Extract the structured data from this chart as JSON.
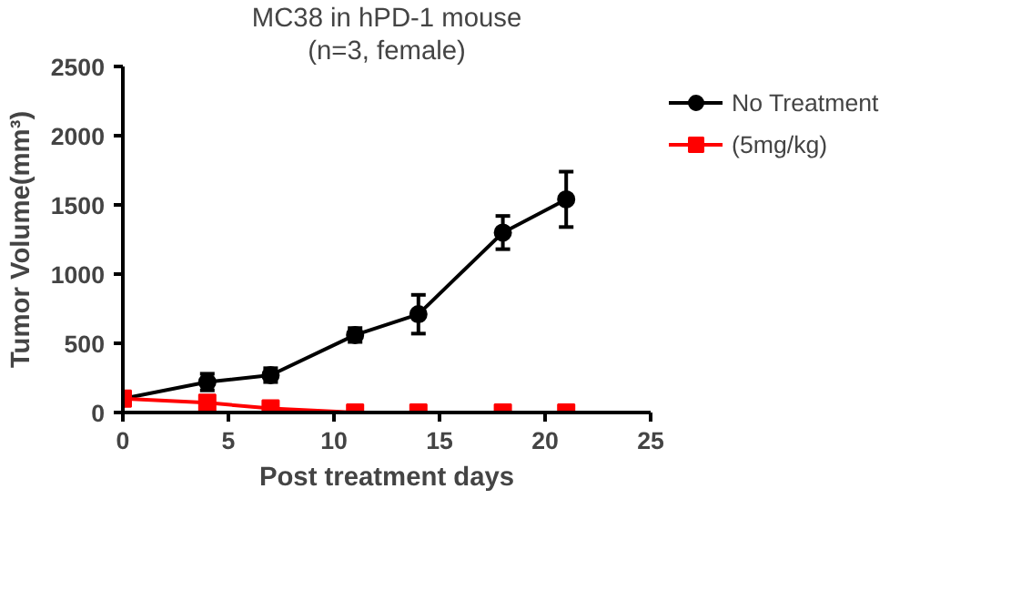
{
  "chart_data": {
    "type": "line",
    "title": "MC38 in hPD-1 mouse",
    "subtitle": "(n=3, female)",
    "xlabel": "Post treatment days",
    "ylabel": "Tumor Volume(mm³)",
    "x": [
      0,
      4,
      7,
      11,
      14,
      18,
      21
    ],
    "series": [
      {
        "name": "No Treatment",
        "color": "#000000",
        "marker": "circle",
        "values": [
          100,
          220,
          270,
          560,
          710,
          1300,
          1540
        ],
        "errors": [
          null,
          60,
          50,
          50,
          140,
          120,
          200
        ]
      },
      {
        "name": "(5mg/kg)",
        "color": "#ff0000",
        "marker": "square",
        "values": [
          100,
          70,
          30,
          0,
          0,
          0,
          0
        ]
      }
    ],
    "xlim": [
      0,
      25
    ],
    "xticks": [
      0,
      5,
      10,
      15,
      20,
      25
    ],
    "ylim": [
      0,
      2500
    ],
    "yticks": [
      0,
      500,
      1000,
      1500,
      2000,
      2500
    ],
    "grid": false,
    "legend": "top right"
  }
}
